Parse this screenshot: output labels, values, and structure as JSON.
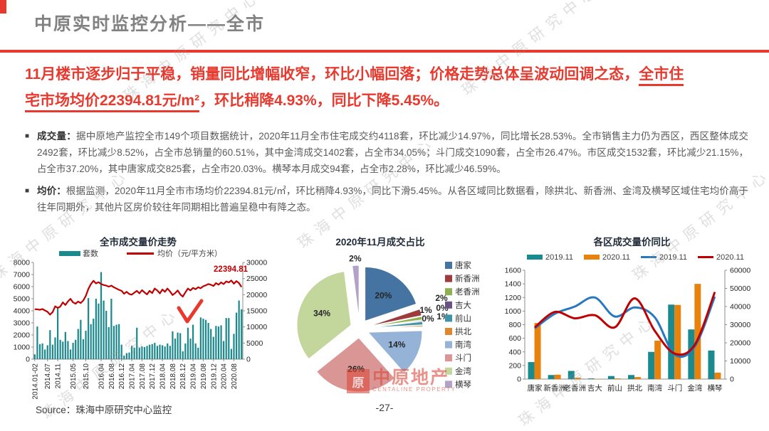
{
  "header": {
    "title": "中原实时监控分析——全市"
  },
  "banner": {
    "line1_text": "11月楼市逐步归于平稳，销量同比增幅收窄，环比小幅回落；价格走势总体呈波动回调之态，",
    "line1_underlined": "全市住",
    "line2_underlined": "宅市场均价22394.81元/m²",
    "line2_text": "，环比稍降4.93%，同比下降5.45%。"
  },
  "bullets": [
    {
      "label": "成交量：",
      "text": "据中原地产监控全市149个项目数据统计，2020年11月全市住宅成交约4118套，环比减少14.97%，同比增长28.53%。全市销售主力仍为西区，西区整体成交2492套，环比减少8.52%，占全市总销量的60.51%，其中金湾成交1402套，占全市34.05%；斗门成交1090套，占全市26.47%。市区成交1532套，环比减少21.15%，占全市37.20%，其中唐家成交825套，占全市20.03%。横琴本月成交94套，占全市2.28%，环比减少46.59%。"
    },
    {
      "label": "均价：",
      "text": "根据监测，2020年11月全市市场均价22394.81元/㎡，环比稍降4.93%，同比下滑5.45%。从各区域同比数据看，除拱北、新香洲、金湾及横琴区域住宅均价高于往年同期外，其他片区房价较往年同期相比普遍呈稳中有降之态。"
    }
  ],
  "chart_data": [
    {
      "id": "trend",
      "type": "combo",
      "title": "全市成交量价走势",
      "legend": [
        {
          "name": "套数",
          "kind": "bar",
          "color": "#1b8a8f"
        },
        {
          "name": "均价（元/平方米）",
          "kind": "line",
          "color": "#c00000"
        }
      ],
      "x_ticks": [
        "2014.01-02",
        "2014.07",
        "2014.11",
        "2015.05",
        "2015.10",
        "2016.04",
        "2016.08",
        "2016.12",
        "2017.04",
        "2017.08",
        "2017.12",
        "2018.04",
        "2018.08",
        "2018.12",
        "2019.04",
        "2019.08",
        "2019.12",
        "2020.04",
        "2020.08"
      ],
      "x_tick_indices": [
        0,
        5,
        9,
        15,
        20,
        26,
        30,
        34,
        38,
        42,
        46,
        50,
        54,
        58,
        62,
        66,
        70,
        74,
        78
      ],
      "bars": [
        400,
        2700,
        1250,
        1300,
        800,
        1150,
        2400,
        1200,
        1800,
        4250,
        1600,
        1450,
        2250,
        1500,
        800,
        1350,
        1600,
        2500,
        3250,
        1650,
        2350,
        5050,
        2900,
        3350,
        5000,
        4600,
        7200,
        4850,
        4000,
        2650,
        5000,
        2750,
        2850,
        2900,
        1200,
        300,
        500,
        550,
        1100,
        950,
        2600,
        950,
        1050,
        1000,
        1100,
        1200,
        1250,
        1350,
        1100,
        1200,
        1150,
        1050,
        1300,
        1100,
        2300,
        1700,
        2200,
        2150,
        650,
        1300,
        2600,
        1700,
        2850,
        1300,
        950,
        3450,
        3350,
        3250,
        3000,
        2500,
        1850,
        2750,
        2700,
        2800,
        1500,
        3400,
        3400,
        850,
        2100,
        3850,
        4850,
        4118
      ],
      "line": [
        15500,
        15450,
        15300,
        15550,
        15100,
        14700,
        13800,
        14600,
        16400,
        15900,
        16300,
        17600,
        16800,
        17900,
        18700,
        17600,
        17200,
        17900,
        17400,
        18200,
        19600,
        21800,
        23300,
        24300,
        23500,
        23900,
        23300,
        23000,
        22800,
        22500,
        22800,
        22300,
        21900,
        21500,
        21200,
        20300,
        20900,
        20200,
        20000,
        20600,
        21200,
        20400,
        21400,
        20700,
        20100,
        21200,
        20500,
        21900,
        21300,
        20400,
        21600,
        20900,
        21900,
        21000,
        19900,
        20500,
        21300,
        20100,
        19400,
        20700,
        21900,
        21300,
        22100,
        21700,
        22300,
        22000,
        22600,
        22900,
        23300,
        23100,
        22700,
        23600,
        23100,
        23800,
        23300,
        24100,
        23800,
        24400,
        23400,
        24200,
        23600,
        22394.81
      ],
      "ylim_left": [
        0,
        8000
      ],
      "ytick_step_left": 1000,
      "ylim_right": [
        0,
        30000
      ],
      "ytick_step_right": 5000,
      "annotation": {
        "text": "22394.81",
        "color": "#c00000"
      }
    },
    {
      "id": "share",
      "type": "pie",
      "title": "2020年11月成交占比",
      "labels": [
        "唐家",
        "新香洲",
        "老香洲",
        "吉大",
        "前山",
        "拱北",
        "南湾",
        "斗门",
        "金湾",
        "横琴"
      ],
      "values": [
        20,
        2,
        1,
        0.3,
        1,
        0.4,
        14,
        26,
        34,
        2
      ],
      "display": [
        "20%",
        "2%",
        "1%",
        "0%",
        "1%",
        "0%",
        "14%",
        "26%",
        "34%",
        "2%"
      ],
      "colors": [
        "#4574a3",
        "#9e3b3c",
        "#8eb04e",
        "#6a5384",
        "#3f95a5",
        "#e0862c",
        "#95b3d7",
        "#d99694",
        "#c3d69b",
        "#b3a2c7"
      ],
      "legend_position": "right"
    },
    {
      "id": "district",
      "type": "combo",
      "title": "各区成交量价同比",
      "categories": [
        "唐家",
        "新香洲",
        "老香洲",
        "吉大",
        "前山",
        "拱北",
        "南湾",
        "斗门",
        "金湾",
        "横琴"
      ],
      "bar_series": [
        {
          "name": "2019.11",
          "color": "#1b8a8f",
          "values": [
            250,
            60,
            120,
            10,
            45,
            60,
            400,
            1095,
            730,
            420
          ]
        },
        {
          "name": "2020.11",
          "color": "#e8820c",
          "values": [
            825,
            65,
            20,
            5,
            10,
            30,
            565,
            1090,
            1400,
            95
          ]
        }
      ],
      "line_series": [
        {
          "name": "2019.11",
          "color": "#2878bf",
          "values": [
            28000,
            36000,
            40000,
            45000,
            34500,
            39500,
            34000,
            13500,
            18000,
            45500
          ]
        },
        {
          "name": "2020.11",
          "color": "#c00000",
          "values": [
            28500,
            37000,
            33500,
            35200,
            28500,
            44500,
            26500,
            14000,
            19000,
            48000
          ]
        }
      ],
      "ylim_left": [
        0,
        1600
      ],
      "ytick_step_left": 200,
      "ylim_right": [
        0,
        60000
      ],
      "ytick_step_right": 10000
    }
  ],
  "watermark": {
    "text": "珠海中原研究中心",
    "logo_box": "原",
    "logo_title": "中原地产",
    "logo_sub": "CENTALINE PROPERTY"
  },
  "footer": {
    "source": "Source：珠海中原研究中心监控",
    "page": "-27-"
  }
}
